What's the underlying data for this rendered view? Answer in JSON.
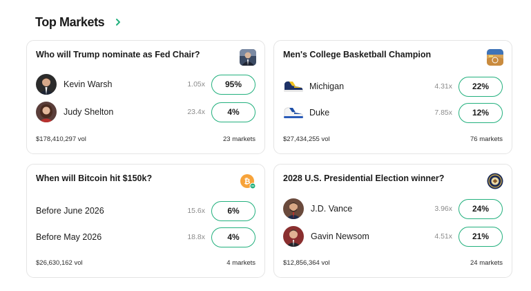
{
  "header": {
    "title": "Top Markets",
    "more_icon": "chevron-right-icon"
  },
  "colors": {
    "accent": "#22b07d",
    "border": "#e4e4e4",
    "muted": "#8a8a8a"
  },
  "cards": [
    {
      "title": "Who will Trump nominate as Fed Chair?",
      "thumb_icon": "portrait-thumbnail",
      "rows": [
        {
          "label": "Kevin Warsh",
          "multiplier": "1.05x",
          "percent": "95%",
          "icon": "person-avatar"
        },
        {
          "label": "Judy Shelton",
          "multiplier": "23.4x",
          "percent": "4%",
          "icon": "person-avatar"
        }
      ],
      "volume": "$178,410,297 vol",
      "markets": "23 markets"
    },
    {
      "title": "Men's College Basketball Champion",
      "thumb_icon": "basketball-court-thumbnail",
      "rows": [
        {
          "label": "Michigan",
          "multiplier": "4.31x",
          "percent": "22%",
          "icon": "sneaker-icon"
        },
        {
          "label": "Duke",
          "multiplier": "7.85x",
          "percent": "12%",
          "icon": "sneaker-icon"
        }
      ],
      "volume": "$27,434,255 vol",
      "markets": "76 markets"
    },
    {
      "title": "When will Bitcoin hit $150k?",
      "thumb_icon": "bitcoin-icon",
      "rows": [
        {
          "label": "Before June 2026",
          "multiplier": "15.6x",
          "percent": "6%"
        },
        {
          "label": "Before May 2026",
          "multiplier": "18.8x",
          "percent": "4%"
        }
      ],
      "volume": "$26,630,162 vol",
      "markets": "4 markets"
    },
    {
      "title": "2028 U.S. Presidential Election winner?",
      "thumb_icon": "presidential-seal-icon",
      "rows": [
        {
          "label": "J.D. Vance",
          "multiplier": "3.96x",
          "percent": "24%",
          "icon": "person-avatar"
        },
        {
          "label": "Gavin Newsom",
          "multiplier": "4.51x",
          "percent": "21%",
          "icon": "person-avatar"
        }
      ],
      "volume": "$12,856,364 vol",
      "markets": "24 markets"
    }
  ]
}
